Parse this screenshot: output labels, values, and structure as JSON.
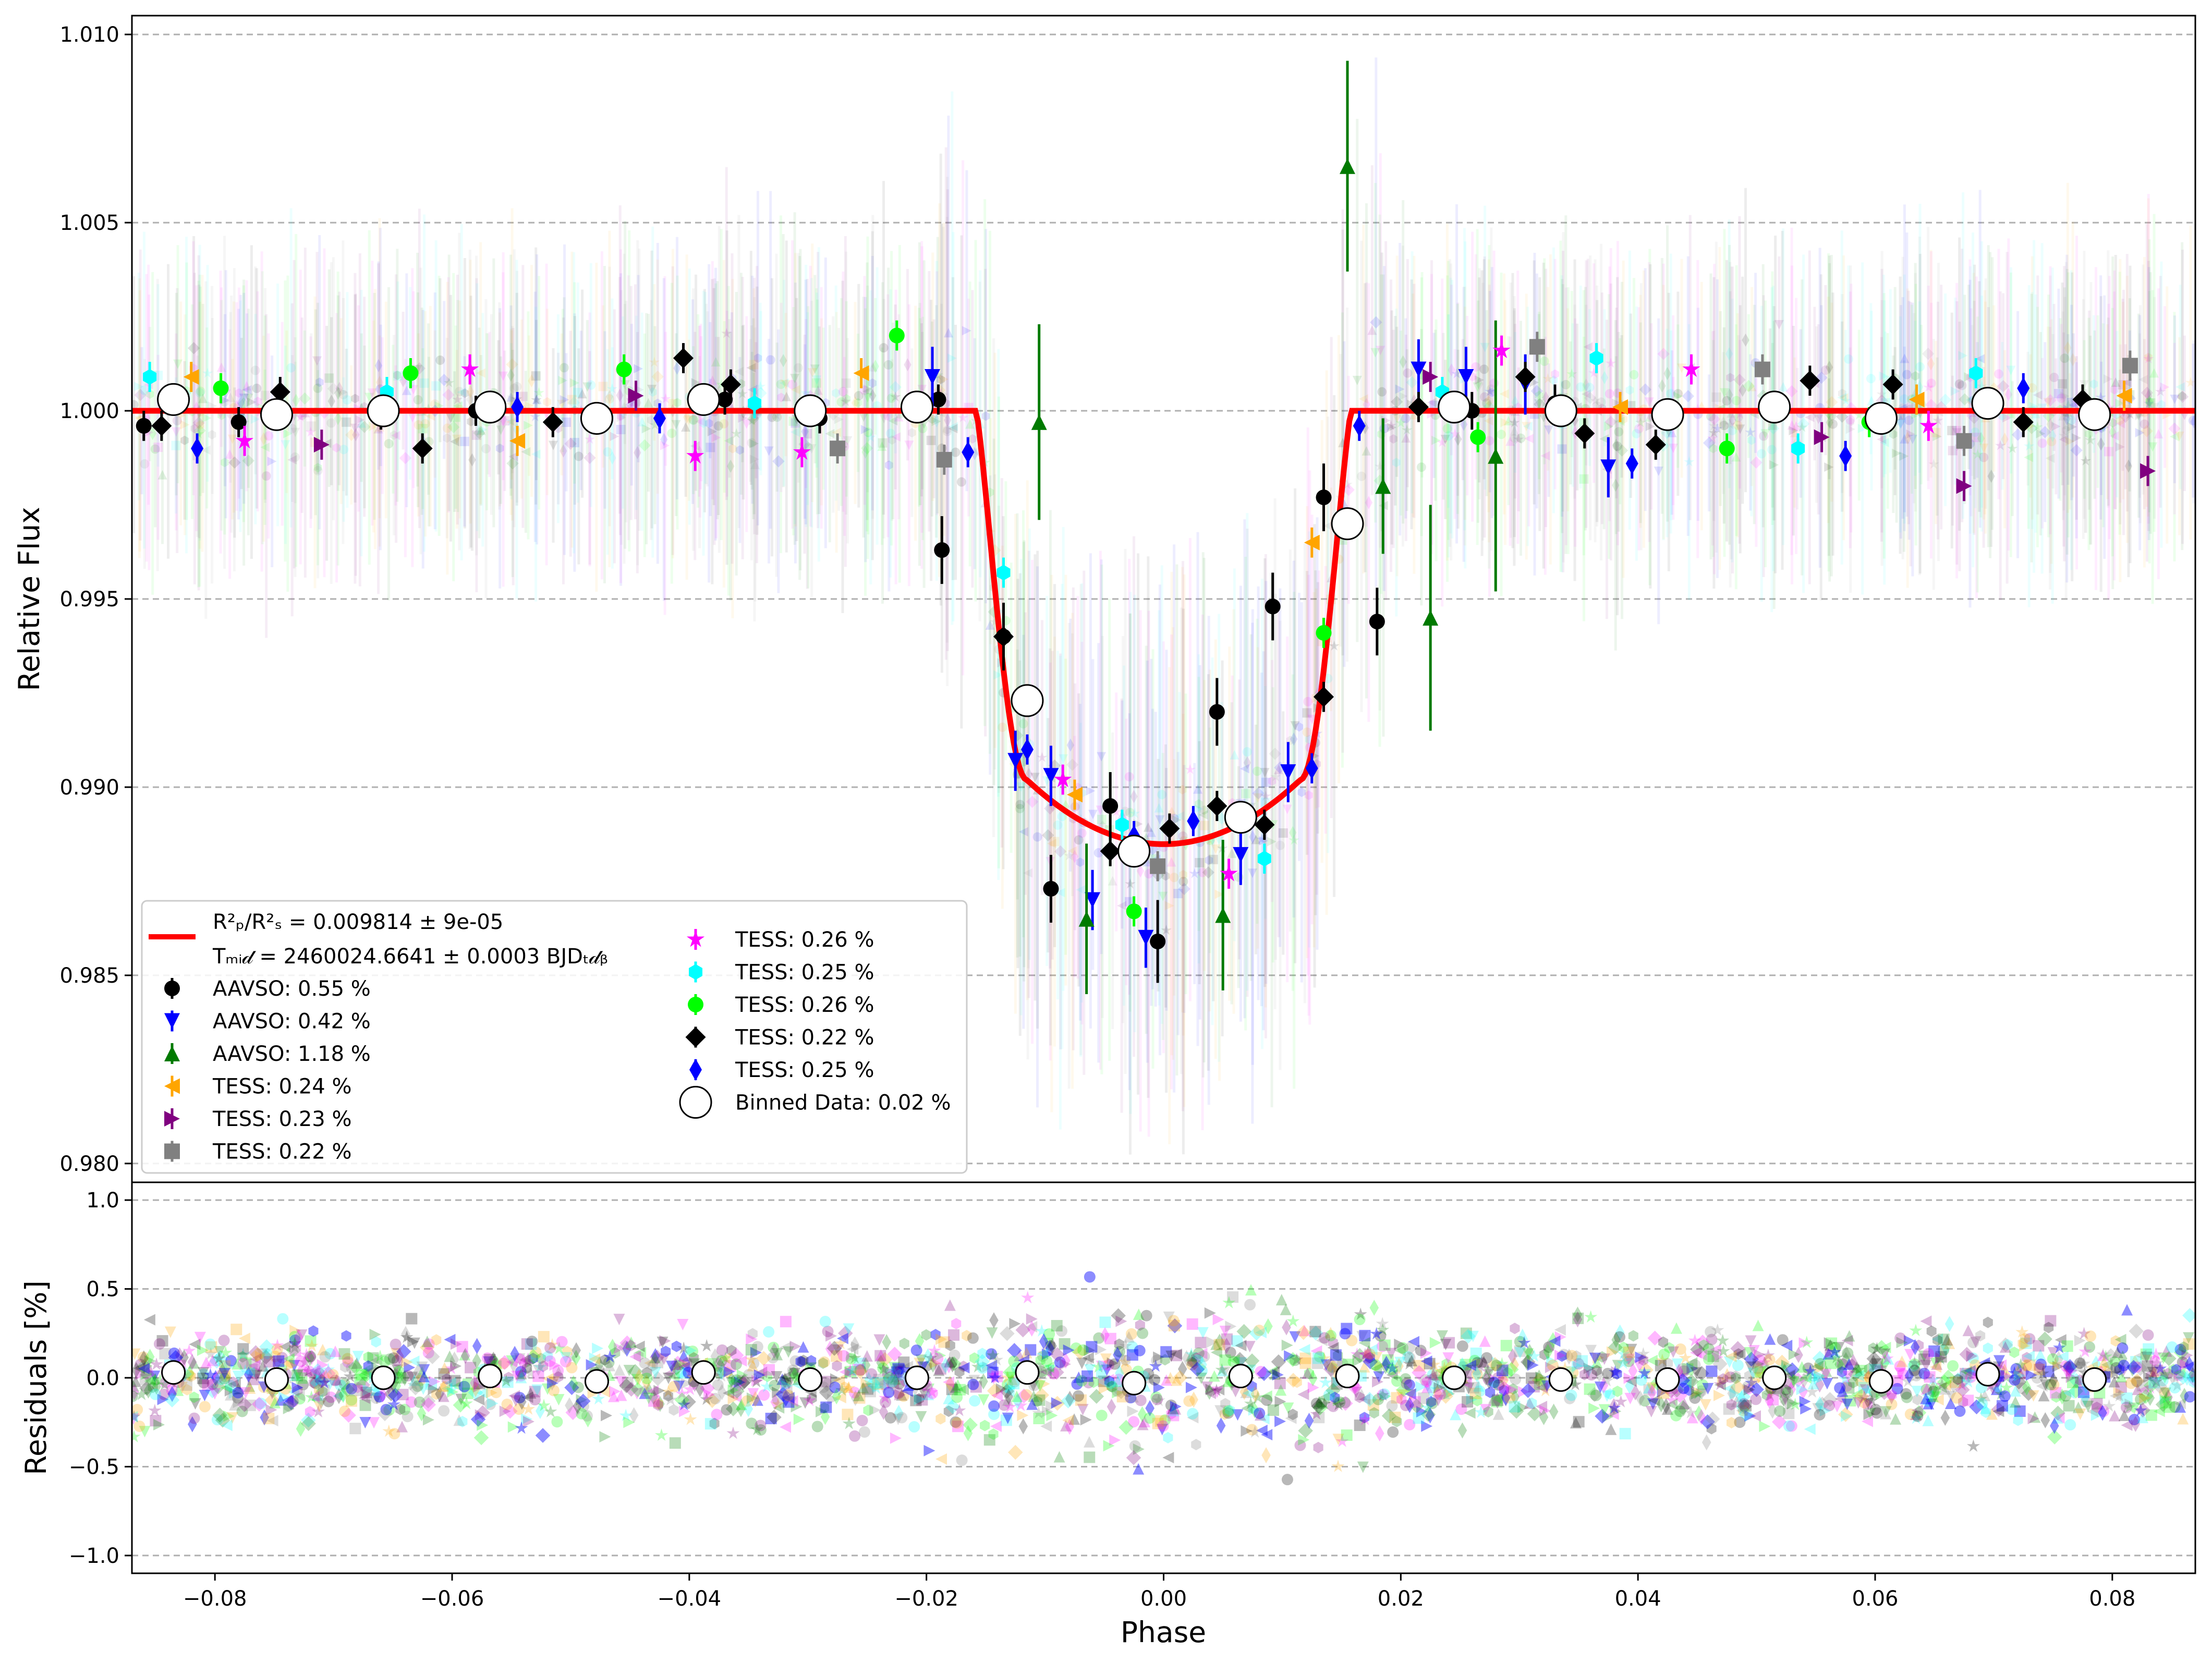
{
  "chart_data": [
    {
      "type": "scatter",
      "panel": "light-curve",
      "xlabel": "Phase",
      "ylabel": "Relative Flux",
      "xlim": [
        -0.087,
        0.087
      ],
      "ylim": [
        0.9795,
        1.0105
      ],
      "grid": "horizontal dashed",
      "x_ticks": [
        -0.08,
        -0.06,
        -0.04,
        -0.02,
        0.0,
        0.02,
        0.04,
        0.06,
        0.08
      ],
      "x_tick_labels": [
        "−0.08",
        "−0.06",
        "−0.04",
        "−0.02",
        "0.00",
        "0.02",
        "0.04",
        "0.06",
        "0.08"
      ],
      "y_ticks": [
        0.98,
        0.985,
        0.99,
        0.995,
        1.0,
        1.005,
        1.01
      ],
      "y_tick_labels": [
        "0.980",
        "0.985",
        "0.990",
        "0.995",
        "1.000",
        "1.005",
        "1.010"
      ],
      "model": {
        "name": "transit model",
        "color": "#ff0000",
        "depth": 0.009814,
        "t1": -0.0158,
        "t2": -0.0115,
        "t3": 0.0115,
        "t4": 0.0158,
        "legend_line1": "R²ₚ/R²ₛ = 0.009814 ± 9e-05",
        "legend_line2": "Tₘᵢ𝒹 = 2460024.6641 ± 0.0003 BJDₜ𝒹ᵦ"
      },
      "series": [
        {
          "name": "AAVSO: 0.55 %",
          "marker": "circle",
          "color": "#000000",
          "x": [
            -0.086,
            -0.078,
            -0.066,
            -0.058,
            -0.048,
            -0.037,
            -0.029,
            -0.019,
            -0.0187,
            -0.0135,
            -0.0095,
            -0.0045,
            -0.0005,
            0.0045,
            0.0092,
            0.0135,
            0.018,
            0.026,
            0.033
          ],
          "y": [
            0.9996,
            0.9997,
            0.9999,
            1.0,
            0.9998,
            1.0003,
            0.9998,
            1.0003,
            0.9963,
            0.994,
            0.9873,
            0.9895,
            0.9859,
            0.992,
            0.9948,
            0.9977,
            0.9944,
            1.0,
            1.0002
          ],
          "err": [
            0.0004,
            0.0004,
            0.0004,
            0.0004,
            0.0004,
            0.0004,
            0.0004,
            0.0004,
            0.0009,
            0.0009,
            0.0009,
            0.0009,
            0.0011,
            0.0009,
            0.0009,
            0.0009,
            0.0009,
            0.0005,
            0.0005
          ]
        },
        {
          "name": "AAVSO: 0.42 %",
          "marker": "tri-down",
          "color": "#0000ff",
          "x": [
            -0.0195,
            -0.0125,
            -0.0095,
            -0.006,
            -0.0015,
            0.0065,
            0.0105,
            0.0215,
            0.0255,
            0.0305,
            0.0375
          ],
          "y": [
            1.0009,
            0.9907,
            0.9903,
            0.987,
            0.986,
            0.9882,
            0.9904,
            1.0011,
            1.0009,
            1.0007,
            0.9985
          ],
          "err": [
            0.0008,
            0.0008,
            0.0008,
            0.0008,
            0.0008,
            0.0008,
            0.0008,
            0.0008,
            0.0008,
            0.0008,
            0.0008
          ]
        },
        {
          "name": "AAVSO: 1.18 %",
          "marker": "tri-up",
          "color": "#007a00",
          "x": [
            -0.0105,
            -0.0065,
            0.005,
            0.0155,
            0.0185,
            0.0225,
            0.028
          ],
          "y": [
            0.9997,
            0.9865,
            0.9866,
            1.0065,
            0.998,
            0.9945,
            0.9988
          ],
          "err": [
            0.0026,
            0.002,
            0.002,
            0.0028,
            0.0018,
            0.003,
            0.0036
          ]
        },
        {
          "name": "TESS: 0.24 %",
          "marker": "tri-left",
          "color": "#ffa500",
          "x": [
            -0.082,
            -0.0545,
            -0.0255,
            -0.0075,
            0.0125,
            0.0385,
            0.0635,
            0.081
          ],
          "y": [
            1.0009,
            0.9992,
            1.001,
            0.9898,
            0.9965,
            1.0001,
            1.0003,
            1.0004
          ],
          "err": [
            0.0004,
            0.0004,
            0.0004,
            0.0004,
            0.0004,
            0.0004,
            0.0004,
            0.0004
          ]
        },
        {
          "name": "TESS: 0.23 %",
          "marker": "tri-right",
          "color": "#800080",
          "x": [
            -0.071,
            -0.0445,
            0.0225,
            0.0555,
            0.0675,
            0.083
          ],
          "y": [
            0.9991,
            1.0004,
            1.0009,
            0.9993,
            0.998,
            0.9984
          ],
          "err": [
            0.0004,
            0.0004,
            0.0004,
            0.0004,
            0.0004,
            0.0004
          ]
        },
        {
          "name": "TESS: 0.22 %",
          "marker": "square",
          "color": "#808080",
          "x": [
            -0.0275,
            -0.0185,
            -0.0005,
            0.0315,
            0.0505,
            0.0675,
            0.0815
          ],
          "y": [
            0.999,
            0.9987,
            0.9879,
            1.0017,
            1.0011,
            0.9992,
            1.0012
          ],
          "err": [
            0.0004,
            0.0004,
            0.0004,
            0.0004,
            0.0004,
            0.0004,
            0.0004
          ]
        },
        {
          "name": "TESS: 0.26 %",
          "marker": "star",
          "color": "#ff00ff",
          "x": [
            -0.0775,
            -0.0585,
            -0.0395,
            -0.0305,
            -0.0085,
            0.0055,
            0.0285,
            0.0445,
            0.0645
          ],
          "y": [
            0.9992,
            1.0011,
            0.9988,
            0.9989,
            0.9902,
            0.9877,
            1.0016,
            1.0011,
            0.9996
          ],
          "err": [
            0.0004,
            0.0004,
            0.0004,
            0.0004,
            0.0004,
            0.0004,
            0.0004,
            0.0004,
            0.0004
          ]
        },
        {
          "name": "TESS: 0.25 %",
          "marker": "hexagon",
          "color": "#00ffff",
          "x": [
            -0.0855,
            -0.0655,
            -0.0345,
            -0.0135,
            -0.0035,
            0.0085,
            0.0235,
            0.0365,
            0.0535,
            0.0685
          ],
          "y": [
            1.0009,
            1.0005,
            1.0002,
            0.9957,
            0.989,
            0.9881,
            1.0005,
            1.0014,
            0.999,
            1.001
          ],
          "err": [
            0.0004,
            0.0004,
            0.0004,
            0.0004,
            0.0004,
            0.0004,
            0.0004,
            0.0004,
            0.0004,
            0.0004
          ]
        },
        {
          "name": "TESS: 0.26 %",
          "marker": "octagon",
          "color": "#00ff00",
          "x": [
            -0.0795,
            -0.0635,
            -0.0455,
            -0.0225,
            -0.0025,
            0.0135,
            0.0265,
            0.0475,
            0.0595
          ],
          "y": [
            1.0006,
            1.001,
            1.0011,
            1.002,
            0.9867,
            0.9941,
            0.9993,
            0.999,
            0.9997
          ],
          "err": [
            0.0004,
            0.0004,
            0.0004,
            0.0004,
            0.0004,
            0.0004,
            0.0004,
            0.0004,
            0.0004
          ]
        },
        {
          "name": "TESS: 0.22 %",
          "marker": "diamond",
          "color": "#000000",
          "x": [
            -0.0845,
            -0.0745,
            -0.0625,
            -0.0515,
            -0.0405,
            -0.0365,
            -0.0135,
            -0.0045,
            0.0005,
            0.0045,
            0.0085,
            0.0135,
            0.0215,
            0.0305,
            0.0355,
            0.0415,
            0.0545,
            0.0615,
            0.0725,
            0.0775
          ],
          "y": [
            0.9996,
            1.0005,
            0.999,
            0.9997,
            1.0014,
            1.0007,
            0.994,
            0.9883,
            0.9889,
            0.9895,
            0.989,
            0.9924,
            1.0001,
            1.0009,
            0.9994,
            0.9991,
            1.0008,
            1.0007,
            0.9997,
            1.0003
          ],
          "err": [
            0.0004,
            0.0004,
            0.0004,
            0.0004,
            0.0004,
            0.0004,
            0.0004,
            0.0004,
            0.0004,
            0.0004,
            0.0004,
            0.0004,
            0.0004,
            0.0004,
            0.0004,
            0.0004,
            0.0004,
            0.0004,
            0.0004,
            0.0004
          ]
        },
        {
          "name": "TESS: 0.25 %",
          "marker": "thin-diamond",
          "color": "#0000ff",
          "x": [
            -0.0815,
            -0.0545,
            -0.0425,
            -0.0165,
            -0.0115,
            -0.0025,
            0.0025,
            0.0125,
            0.0165,
            0.0395,
            0.0575,
            0.0725
          ],
          "y": [
            0.999,
            1.0001,
            0.9998,
            0.9989,
            0.991,
            0.9887,
            0.9891,
            0.9905,
            0.9996,
            0.9986,
            0.9988,
            1.0006
          ],
          "err": [
            0.0004,
            0.0004,
            0.0004,
            0.0004,
            0.0004,
            0.0004,
            0.0004,
            0.0004,
            0.0004,
            0.0004,
            0.0004,
            0.0004
          ]
        },
        {
          "name": "Binned Data: 0.02 %",
          "marker": "big-circle",
          "color": "#ffffff",
          "x": [
            -0.0835,
            -0.0748,
            -0.0658,
            -0.0568,
            -0.0478,
            -0.0388,
            -0.0298,
            -0.0208,
            -0.0115,
            -0.0025,
            0.0065,
            0.0155,
            0.0245,
            0.0335,
            0.0425,
            0.0515,
            0.0605,
            0.0695,
            0.0785
          ],
          "y": [
            1.0003,
            0.9999,
            1.0,
            1.0001,
            0.9998,
            1.0003,
            1.0,
            1.0001,
            0.9923,
            0.9883,
            0.9892,
            0.997,
            1.0001,
            1.0,
            0.9999,
            1.0001,
            0.9998,
            1.0002,
            0.9999
          ]
        }
      ]
    },
    {
      "type": "scatter",
      "panel": "residuals",
      "xlabel": "Phase",
      "ylabel": "Residuals [%]",
      "xlim": [
        -0.087,
        0.087
      ],
      "ylim": [
        -1.1,
        1.1
      ],
      "grid": "horizontal dashed",
      "y_ticks": [
        -1.0,
        -0.5,
        0.0,
        0.5,
        1.0
      ],
      "y_tick_labels": [
        "−1.0",
        "−0.5",
        "0.0",
        "0.5",
        "1.0"
      ],
      "series": [
        {
          "name": "Binned Data",
          "marker": "big-circle",
          "color": "#ffffff",
          "x": [
            -0.0835,
            -0.0748,
            -0.0658,
            -0.0568,
            -0.0478,
            -0.0388,
            -0.0298,
            -0.0208,
            -0.0115,
            -0.0025,
            0.0065,
            0.0155,
            0.0245,
            0.0335,
            0.0425,
            0.0515,
            0.0605,
            0.0695,
            0.0785
          ],
          "y": [
            0.03,
            -0.01,
            0.0,
            0.01,
            -0.02,
            0.03,
            -0.01,
            0.0,
            0.03,
            -0.03,
            0.01,
            0.01,
            0.0,
            -0.01,
            -0.01,
            0.0,
            -0.02,
            0.02,
            -0.01
          ]
        }
      ]
    }
  ],
  "background_scatter": {
    "palette": [
      "#000000",
      "#0000ff",
      "#008000",
      "#ffa500",
      "#800080",
      "#808080",
      "#ff00ff",
      "#00ffff",
      "#00ff00"
    ],
    "transit_window": [
      -0.0158,
      0.0158
    ]
  }
}
